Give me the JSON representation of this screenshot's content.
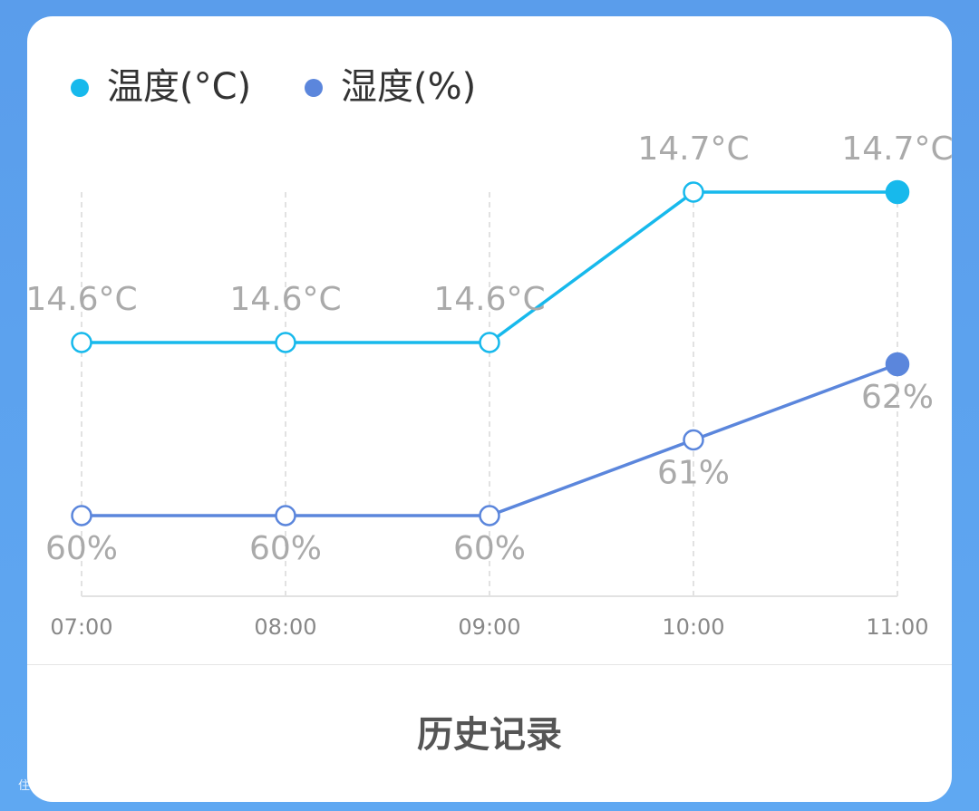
{
  "chart_data": {
    "type": "line",
    "categories": [
      "07:00",
      "08:00",
      "09:00",
      "10:00",
      "11:00"
    ],
    "series": [
      {
        "name": "温度(°C)",
        "color": "#17b9ec",
        "values": [
          14.6,
          14.6,
          14.6,
          14.7,
          14.7
        ],
        "value_labels": [
          "14.6°C",
          "14.6°C",
          "14.6°C",
          "14.7°C",
          "14.7°C"
        ]
      },
      {
        "name": "湿度(%)",
        "color": "#5b86dc",
        "values": [
          60,
          60,
          60,
          61,
          62
        ],
        "value_labels": [
          "60%",
          "60%",
          "60%",
          "61%",
          "62%"
        ]
      }
    ],
    "grid": true
  },
  "button": {
    "label": "历史记录"
  },
  "watermark": "住小帮@LEO新视角"
}
